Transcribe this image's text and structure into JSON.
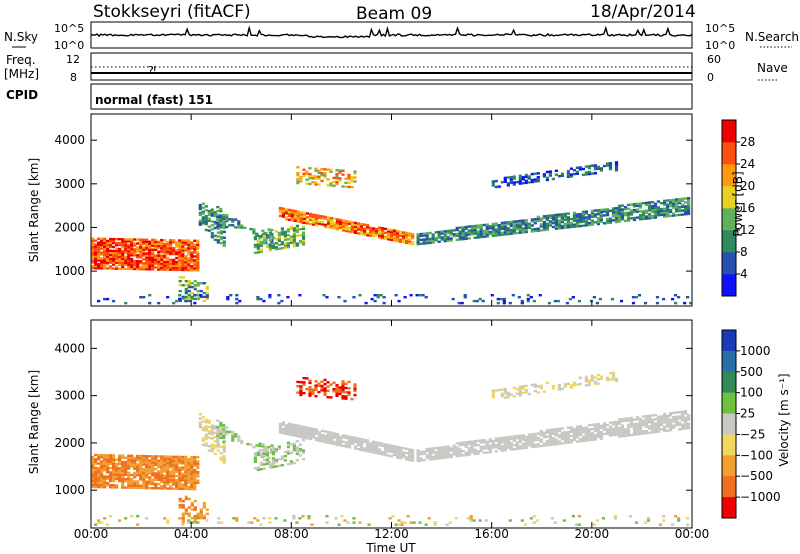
{
  "header": {
    "title": "Stokkseyri (fitACF)",
    "beam": "Beam 09",
    "date": "18/Apr/2014"
  },
  "strip_labels": {
    "nsky": "N.Sky",
    "nsearch": "N.Search",
    "freq_line1": "Freq.",
    "freq_line2": "[MHz]",
    "nave": "Nave",
    "cpid": "CPID",
    "cpid_value": "normal (fast) 151",
    "nsky_ticks": [
      "10^5",
      "10^0"
    ],
    "freq_ticks": [
      "12",
      "8"
    ],
    "nave_ticks": [
      "60",
      "0"
    ],
    "nsearch_ticks": [
      "10^5",
      "10^0"
    ]
  },
  "chart_data": [
    {
      "type": "heatmap",
      "title": "",
      "xlabel": "Time UT",
      "ylabel": "Slant Range [km]",
      "xlim": [
        0,
        24
      ],
      "ylim": [
        200,
        4600
      ],
      "x_ticks": [
        0,
        4,
        8,
        12,
        16,
        20,
        24
      ],
      "x_tick_labels": [
        "00:00",
        "04:00",
        "08:00",
        "12:00",
        "16:00",
        "20:00",
        "00:00"
      ],
      "y_ticks": [
        1000,
        2000,
        3000,
        4000
      ],
      "y_tick_labels": [
        "1000",
        "2000",
        "3000",
        "4000"
      ],
      "colorbar": {
        "label": "Power [dB]",
        "ticks": [
          "4",
          "8",
          "12",
          "16",
          "20",
          "24",
          "28"
        ],
        "colors": [
          "#1010ff",
          "#2850b0",
          "#2e8a5a",
          "#60b060",
          "#e8d020",
          "#ff9a10",
          "#ff5010",
          "#ee0000"
        ]
      }
    },
    {
      "type": "heatmap",
      "title": "",
      "xlabel": "Time UT",
      "ylabel": "Slant Range [km]",
      "xlim": [
        0,
        24
      ],
      "ylim": [
        200,
        4600
      ],
      "x_ticks": [
        0,
        4,
        8,
        12,
        16,
        20,
        24
      ],
      "x_tick_labels": [
        "00:00",
        "04:00",
        "08:00",
        "12:00",
        "16:00",
        "20:00",
        "00:00"
      ],
      "y_ticks": [
        1000,
        2000,
        3000,
        4000
      ],
      "y_tick_labels": [
        "1000",
        "2000",
        "3000",
        "4000"
      ],
      "colorbar": {
        "label": "Velocity [m s⁻¹]",
        "ticks": [
          "1000",
          "500",
          "100",
          "25",
          "−25",
          "−100",
          "−500",
          "−1000"
        ],
        "colors": [
          "#1a3ab8",
          "#2870a8",
          "#308a58",
          "#70c040",
          "#c8c8c4",
          "#f0d860",
          "#f0a030",
          "#f07020",
          "#ee0000"
        ]
      }
    }
  ]
}
